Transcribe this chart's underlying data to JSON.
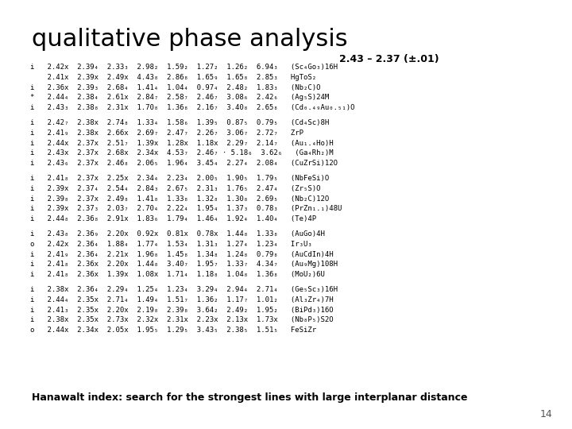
{
  "title": "qualitative phase analysis",
  "subtitle": "2.43 – 2.37 (±.01)",
  "footer": "Hanawalt index: search for the strongest lines with large interplanar distance",
  "page_number": "14",
  "background_color": "#ffffff",
  "title_fontsize": 22,
  "subtitle_fontsize": 9,
  "body_fontsize": 6.5,
  "footer_fontsize": 9,
  "table_lines": [
    "i   2.42x  2.39₄  2.33₃  2.98₂  1.59₂  1.27₂  1.26₂  6.94₃   (Sc₄Go₃)16H",
    "    2.41x  2.39x  2.49x  4.43₈  2.86₈  1.65₉  1.65₈  2.85₃   HgToS₂",
    "i   2.36x  2.39₃  2.68₄  1.41₄  1.04₄  0.97₄  2.48₂  1.83₃   (Nb₂C)O",
    "*   2.44₄  2.38₄  2.61x  2.84₇  2.58₇  2.46₇  3.08₆  2.42₆   (Ag₅S)24M",
    "i   2.43₃  2.38₈  2.31x  1.70₈  1.36₈  2.16₇  3.40₈  2.65₈   (Cd₀.₄₉Au₀.₅₁)O",
    "",
    "i   2.42₇  2.38x  2.74₈  1.33₄  1.58₆  1.39₅  0.87₅  0.79₅   (Cd₄Sc)8H",
    "i   2.41₉  2.38x  2.66x  2.69₇  2.47₇  2.26₇  3.06₇  2.72₇   ZrP",
    "i   2.44x  2.37x  2.51₇  1.39x  1.28x  1.18x  2.29₇  2.14₇   (Au₁.₄Ho)H",
    "i   2.43x  2.37x  2.68x  2.34x  4.53₇  2.46₇ · 5.18₆  3.62₆   (Ga₄Rh₂)M",
    "i   2.43₆  2.37x  2.46₈  2.06₅  1.96₄  3.45₄  2.27₄  2.08₄   (CuZrSi)12O",
    "",
    "i   2.41₈  2.37x  2.25x  2.34₄  2.23₄  2.00₅  1.90₅  1.79₅   (NbFeSi)O",
    "i   2.39x  2.37₄  2.54₄  2.84₃  2.67₅  2.31₃  1.76₅  2.47₄   (Zr₅S)O",
    "i   2.39₈  2.37x  2.49₈  1.41₈  1.33₈  1.32₈  1.30₈  2.69₅   (Nb₂C)12O",
    "i   2.39x  2.37₃  2.03₇  2.70₄  2.22₄  1.95₄  1.37₃  0.78₃   (PrZn₁.₁)48U",
    "i   2.44₈  2.36₈  2.91x  1.83₆  1.79₄  1.46₄  1.92₄  1.40₄   (Te)4P",
    "",
    "i   2.43₈  2.36₉  2.20x  0.92x  0.81x  0.78x  1.44₈  1.33₈   (AuGo)4H",
    "o   2.42x  2.36₄  1.88₄  1.77₄  1.53₄  1.31₃  1.27₄  1.23₄   Ir₃U₃",
    "i   2.41₉  2.36₄  2.21x  1.96₈  1.45₈  1.34₈  1.24₈  0.79₈   (AuCdIn)4H",
    "i   2.41₈  2.36x  2.20x  1.44₈  3.40₇  1.95₇  1.33₇  4.34₇   (Au₉Mg)108H",
    "i   2.41₈  2.36x  1.39x  1.08x  1.71₄  1.18₈  1.04₈  1.36₈   (MoU₂)6U",
    "",
    "i   2.38x  2.36₄  2.29₄  1.25₄  1.23₄  3.29₄  2.94₄  2.71₄   (Ge₅Sc₃)16H",
    "i   2.44₄  2.35x  2.71₄  1.49₄  1.51₇  1.36₂  1.17₇  1.01₂   (Al₃Zr₄)7H",
    "i   2.41₃  2.35x  2.20x  2.19₈  2.39₈  3.64₂  2.49₂  1.95₂   (BiPd₃)16O",
    "i   2.38x  2.35x  2.73x  2.32x  2.31x  2.23x  2.13x  1.73x   (Nb₈P₅)S2O",
    "o   2.44x  2.34x  2.05x  1.95₅  1.29₅  3.43₅  2.38₅  1.51₅   FeSiZr"
  ]
}
